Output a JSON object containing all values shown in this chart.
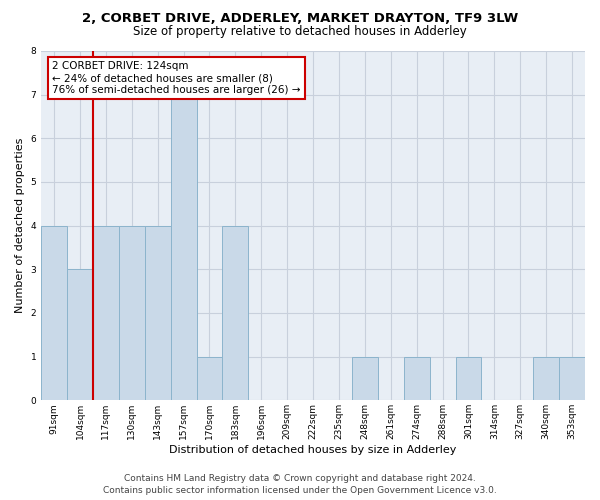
{
  "title_line1": "2, CORBET DRIVE, ADDERLEY, MARKET DRAYTON, TF9 3LW",
  "title_line2": "Size of property relative to detached houses in Adderley",
  "xlabel": "Distribution of detached houses by size in Adderley",
  "ylabel": "Number of detached properties",
  "categories": [
    "91sqm",
    "104sqm",
    "117sqm",
    "130sqm",
    "143sqm",
    "157sqm",
    "170sqm",
    "183sqm",
    "196sqm",
    "209sqm",
    "222sqm",
    "235sqm",
    "248sqm",
    "261sqm",
    "274sqm",
    "288sqm",
    "301sqm",
    "314sqm",
    "327sqm",
    "340sqm",
    "353sqm"
  ],
  "values": [
    4,
    3,
    4,
    4,
    4,
    7,
    1,
    4,
    0,
    0,
    0,
    0,
    1,
    0,
    1,
    0,
    1,
    0,
    0,
    1,
    1
  ],
  "bar_color": "#c9d9e8",
  "bar_edge_color": "#8cb4cc",
  "annotation_text": "2 CORBET DRIVE: 124sqm\n← 24% of detached houses are smaller (8)\n76% of semi-detached houses are larger (26) →",
  "annotation_box_color": "#ffffff",
  "annotation_box_edge_color": "#cc0000",
  "ref_line_color": "#cc0000",
  "ref_line_x": 2.0,
  "ylim": [
    0,
    8
  ],
  "yticks": [
    0,
    1,
    2,
    3,
    4,
    5,
    6,
    7,
    8
  ],
  "grid_color": "#c8d0dc",
  "background_color": "#e8eef5",
  "footer_line1": "Contains HM Land Registry data © Crown copyright and database right 2024.",
  "footer_line2": "Contains public sector information licensed under the Open Government Licence v3.0.",
  "title1_fontsize": 9.5,
  "title2_fontsize": 8.5,
  "tick_fontsize": 6.5,
  "ylabel_fontsize": 8,
  "xlabel_fontsize": 8,
  "annotation_fontsize": 7.5,
  "footer_fontsize": 6.5
}
